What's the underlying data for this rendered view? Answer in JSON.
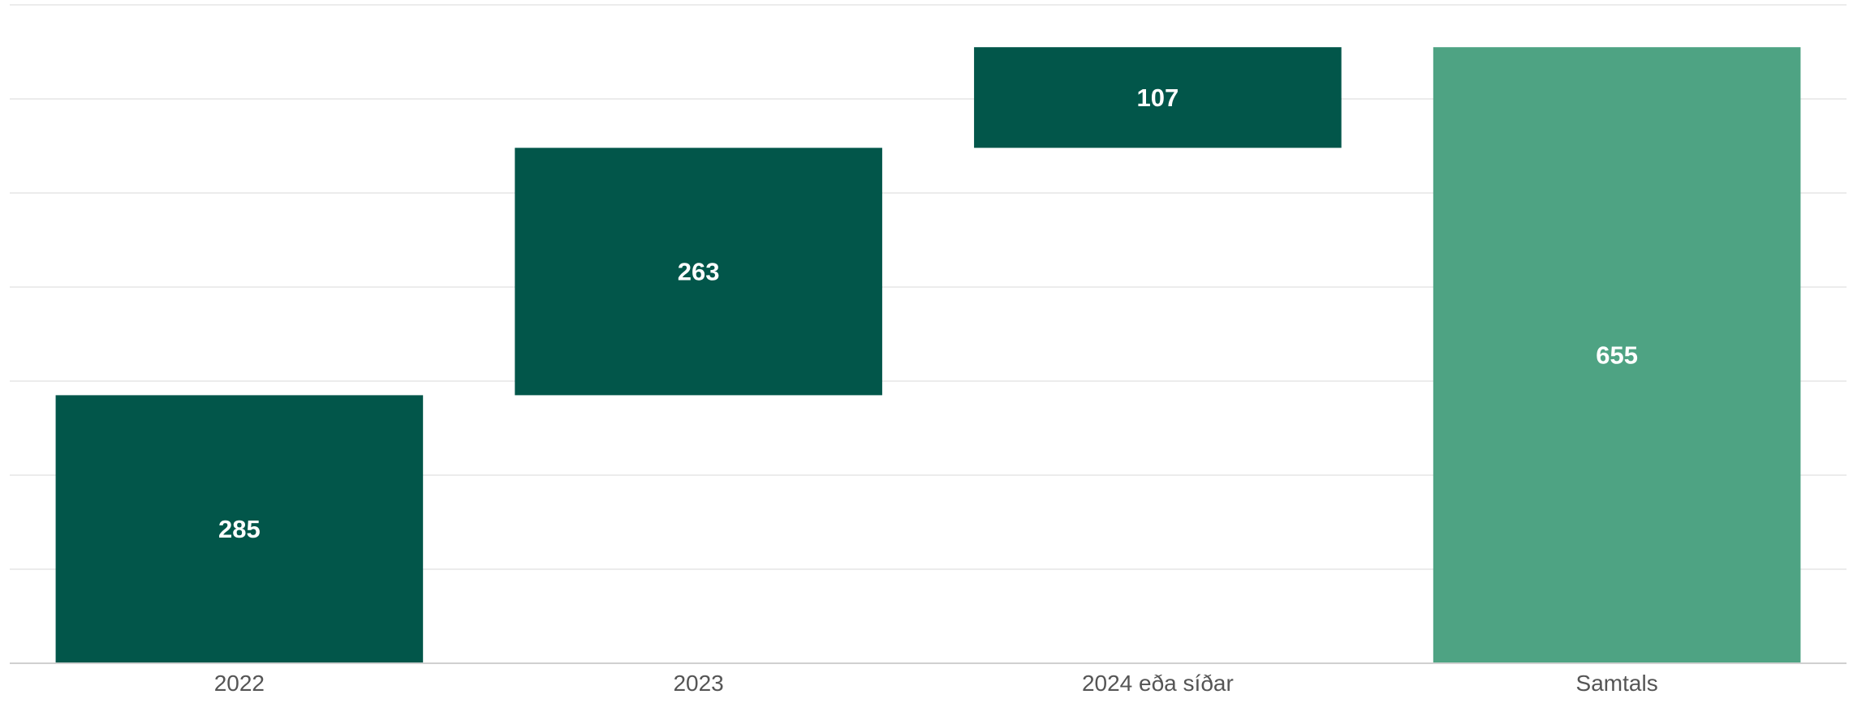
{
  "chart_data": {
    "type": "bar",
    "subtype": "waterfall",
    "categories": [
      "2022",
      "2023",
      "2024 eða síðar",
      "Samtals"
    ],
    "values": [
      285,
      263,
      107,
      655
    ],
    "kinds": [
      "increment",
      "increment",
      "increment",
      "total"
    ],
    "ylim": [
      0,
      700
    ],
    "yticks": [
      0,
      100,
      200,
      300,
      400,
      500,
      600,
      700
    ],
    "grid": true,
    "colors": {
      "increment": "#02564a",
      "total": "#4ea383",
      "grid": "#ececec",
      "axis": "#d0d0d0",
      "label": "#ffffff",
      "tick": "#555555"
    }
  }
}
